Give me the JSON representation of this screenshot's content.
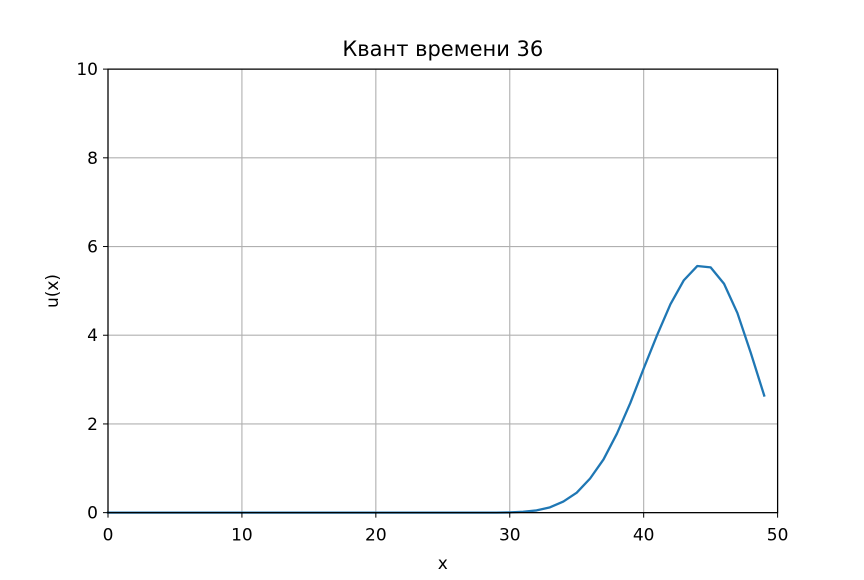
{
  "chart_data": {
    "type": "line",
    "title": "Квант времени 36",
    "xlabel": "x",
    "ylabel": "u(x)",
    "xlim": [
      0,
      50
    ],
    "ylim": [
      0,
      10
    ],
    "xticks": [
      0,
      10,
      20,
      30,
      40,
      50
    ],
    "yticks": [
      0,
      2,
      4,
      6,
      8,
      10
    ],
    "grid": true,
    "series_color": "#1f77b4",
    "grid_color": "#b0b0b0",
    "series": [
      {
        "x": [
          0,
          1,
          2,
          3,
          4,
          5,
          6,
          7,
          8,
          9,
          10,
          11,
          12,
          13,
          14,
          15,
          16,
          17,
          18,
          19,
          20,
          21,
          22,
          23,
          24,
          25,
          26,
          27,
          28,
          29,
          30,
          31,
          32,
          33,
          34,
          35,
          36,
          37,
          38,
          39,
          40,
          41,
          42,
          43,
          44,
          45,
          46,
          47,
          48,
          49
        ],
        "values": [
          0,
          0,
          0,
          0,
          0,
          0,
          0,
          0,
          0,
          0,
          0,
          0,
          0,
          0,
          0,
          0,
          0,
          0,
          0,
          0,
          0,
          0,
          0,
          0,
          0,
          0,
          0,
          0,
          0,
          0,
          0.005,
          0.02,
          0.05,
          0.12,
          0.25,
          0.45,
          0.77,
          1.2,
          1.78,
          2.47,
          3.25,
          4.0,
          4.7,
          5.24,
          5.56,
          5.53,
          5.16,
          4.5,
          3.6,
          2.64
        ]
      }
    ]
  }
}
